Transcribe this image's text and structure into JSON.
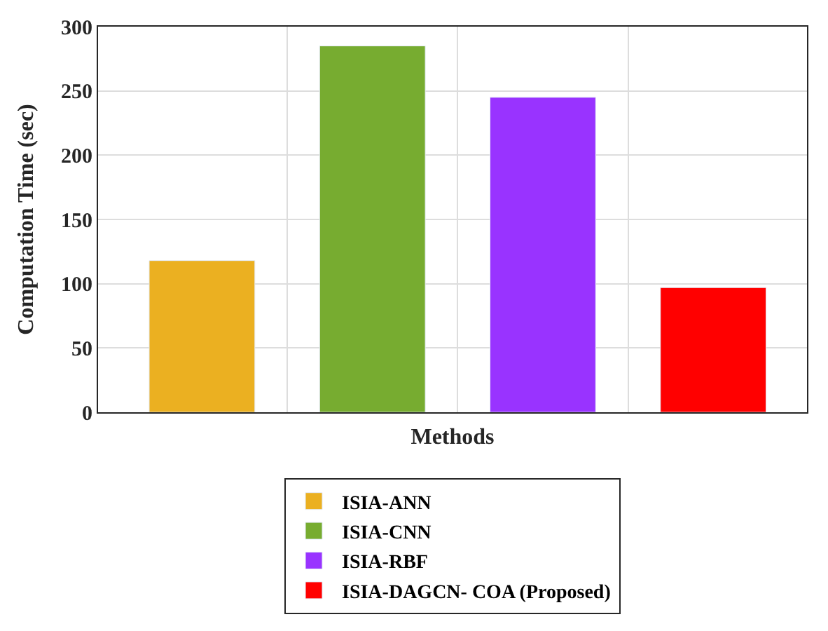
{
  "chart_data": {
    "type": "bar",
    "xlabel": "Methods",
    "ylabel": "Computation Time (sec)",
    "categories": [
      null,
      null,
      null,
      null
    ],
    "series": [
      {
        "name": "ISIA-ANN",
        "color": "#ebb021",
        "values": [
          118,
          null,
          null,
          null
        ]
      },
      {
        "name": "ISIA-CNN",
        "color": "#77ac30",
        "values": [
          null,
          285,
          null,
          null
        ]
      },
      {
        "name": "ISIA-RBF",
        "color": "#9933ff",
        "values": [
          null,
          null,
          245,
          null
        ]
      },
      {
        "name": "ISIA-DAGCN- COA (Proposed)",
        "color": "#ff0000",
        "values": [
          null,
          null,
          null,
          97
        ]
      }
    ],
    "ylim": [
      0,
      300
    ],
    "yticks": [
      0,
      50,
      100,
      150,
      200,
      250,
      300
    ],
    "grid": true,
    "legend": "bottom",
    "tick_labels": "y"
  }
}
